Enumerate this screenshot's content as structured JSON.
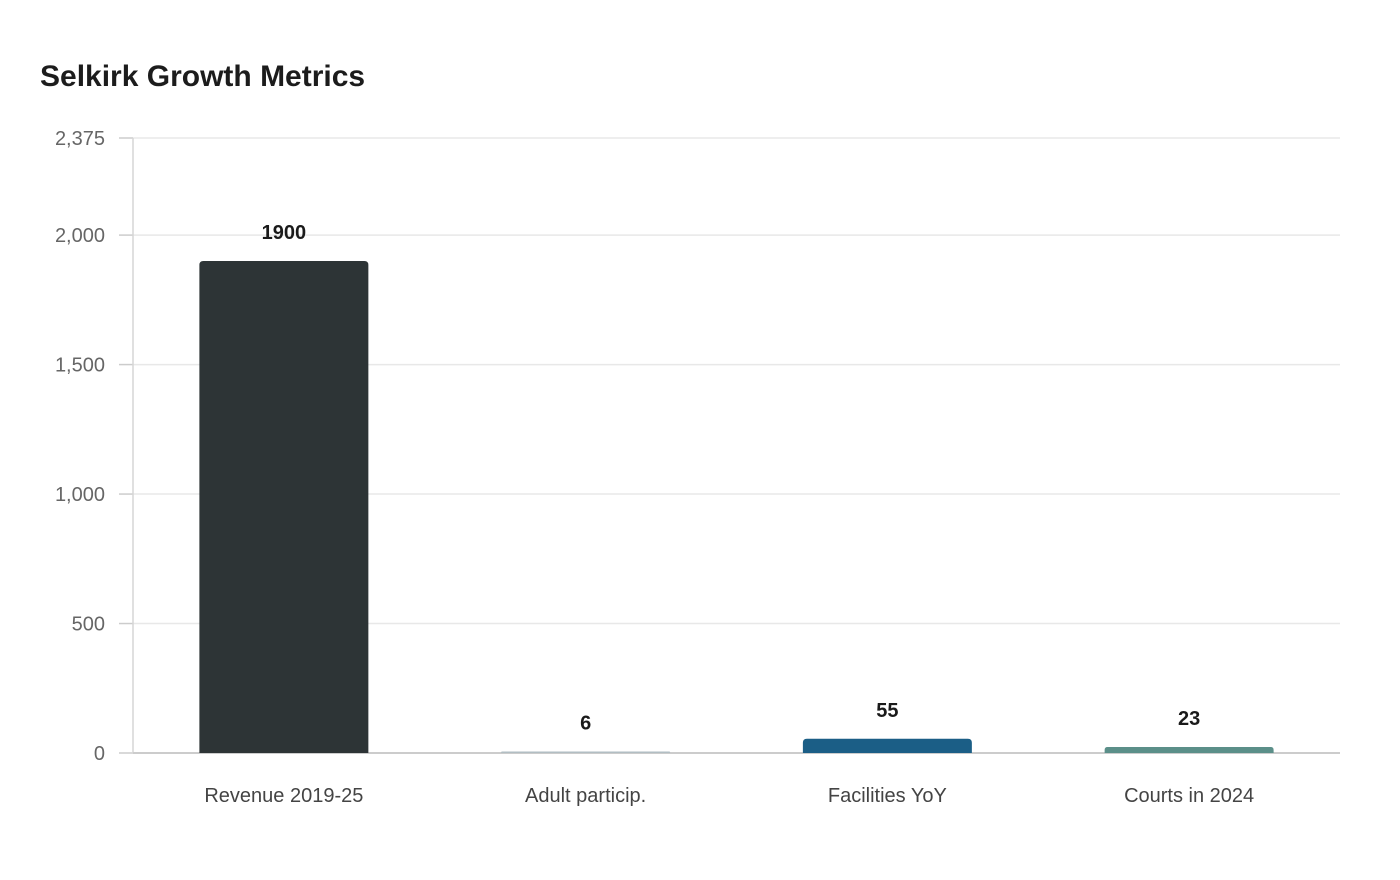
{
  "chart_data": {
    "type": "bar",
    "title": "Selkirk Growth Metrics",
    "xlabel": "",
    "ylabel": "",
    "categories": [
      "Revenue 2019-25",
      "Adult particip.",
      "Facilities YoY",
      "Courts in 2024"
    ],
    "values": [
      1900,
      6,
      55,
      23
    ],
    "data_labels": [
      "1900",
      "6",
      "55",
      "23"
    ],
    "bar_colors": [
      "#2d3436",
      "#b2bec3",
      "#1b5e86",
      "#5b8f89"
    ],
    "ylim": [
      0,
      2375
    ],
    "yticks": [
      0,
      500,
      1000,
      1500,
      2000,
      2375
    ],
    "ytick_labels": [
      "0",
      "500",
      "1,000",
      "1,500",
      "2,000",
      "2,375"
    ],
    "grid": true,
    "legend": "none"
  }
}
